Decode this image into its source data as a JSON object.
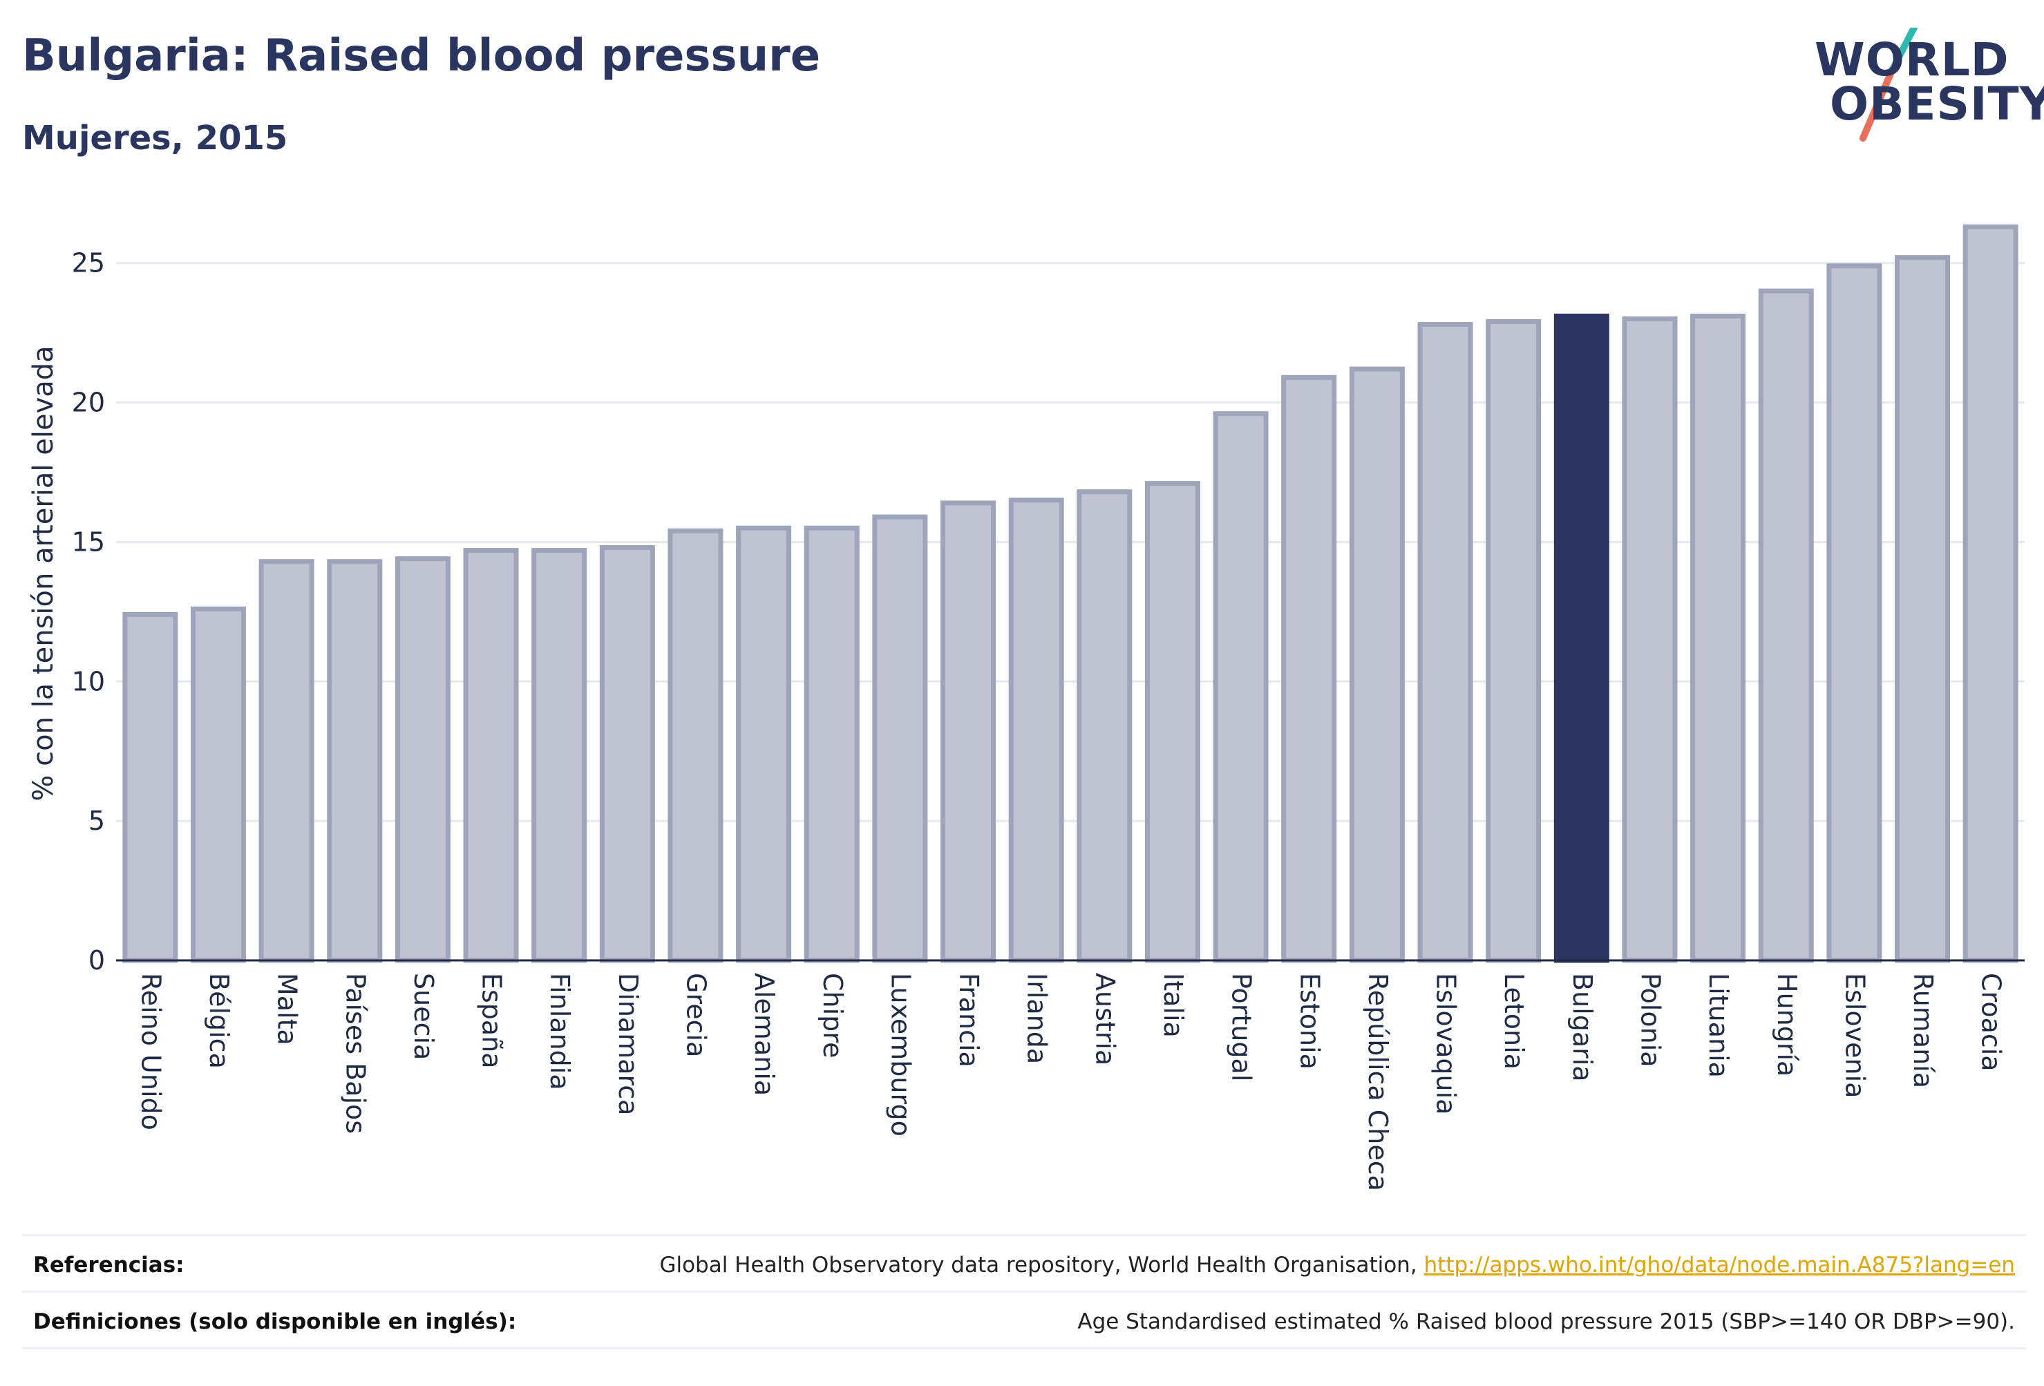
{
  "header": {
    "title": "Bulgaria: Raised blood pressure",
    "subtitle": "Mujeres, 2015"
  },
  "logo": {
    "line1": "WORLD",
    "line2": "OBESITY",
    "slash_color_top": "#2fb8b0",
    "slash_color_bottom": "#e8705a"
  },
  "colors": {
    "bar_fill": "#c0c4d2",
    "bar_stroke": "#9ea4ba",
    "highlight": "#2b3560",
    "grid": "#e6e8ee",
    "axis": "#1f2a44"
  },
  "chart_data": {
    "type": "bar",
    "title": "Bulgaria: Raised blood pressure",
    "subtitle": "Mujeres, 2015",
    "xlabel": "",
    "ylabel": "% con la tensión arterial elevada",
    "ylim": [
      0,
      27
    ],
    "yticks": [
      0,
      5,
      10,
      15,
      20,
      25
    ],
    "grid": true,
    "highlight_category": "Bulgaria",
    "categories": [
      "Reino Unido",
      "Bélgica",
      "Malta",
      "Países Bajos",
      "Suecia",
      "España",
      "Finlandia",
      "Dinamarca",
      "Grecia",
      "Alemania",
      "Chipre",
      "Luxemburgo",
      "Francia",
      "Irlanda",
      "Austria",
      "Italia",
      "Portugal",
      "Estonia",
      "República Checa",
      "Eslovaquia",
      "Letonia",
      "Bulgaria",
      "Polonia",
      "Lituania",
      "Hungría",
      "Eslovenia",
      "Rumanía",
      "Croacia"
    ],
    "values": [
      12.4,
      12.6,
      14.3,
      14.3,
      14.4,
      14.7,
      14.7,
      14.8,
      15.4,
      15.5,
      15.5,
      15.9,
      16.4,
      16.5,
      16.8,
      17.1,
      19.6,
      20.9,
      21.2,
      22.8,
      22.9,
      23.1,
      23.0,
      23.1,
      24.0,
      24.9,
      25.2,
      26.3
    ]
  },
  "footer": {
    "references_label": "Referencias:",
    "references_text": "Global Health Observatory data repository, World Health Organisation, ",
    "references_link": "http://apps.who.int/gho/data/node.main.A875?lang=en",
    "definitions_label": "Definiciones (solo disponible en inglés):",
    "definitions_text": "Age Standardised estimated % Raised blood pressure 2015 (SBP>=140 OR DBP>=90)."
  }
}
